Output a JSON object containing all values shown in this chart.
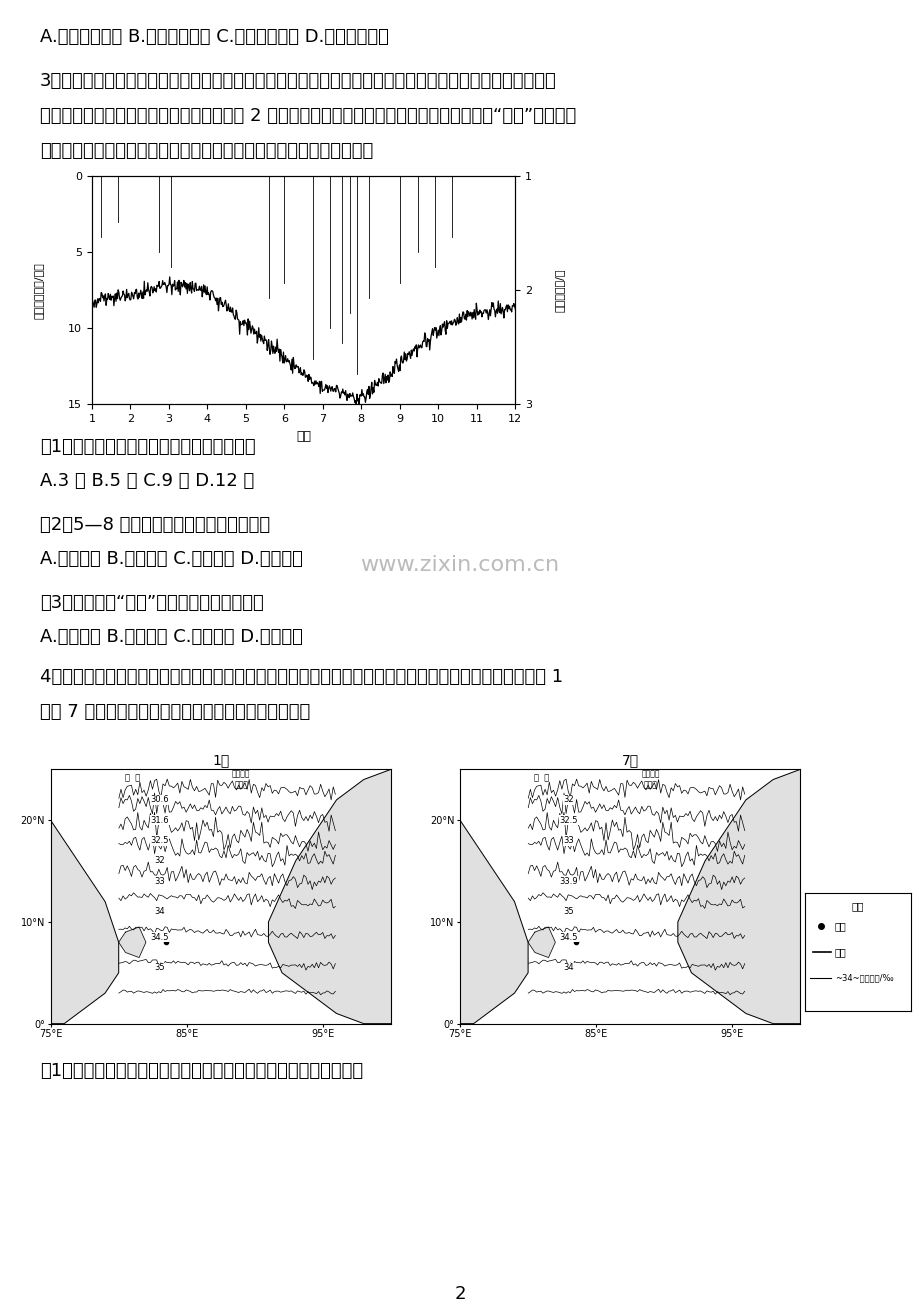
{
  "page_bg": "#ffffff",
  "text_color": "#000000",
  "line1": "A.减少城市污水 B.缓解城市内涝 C.造成地面沉降 D.影响交通出行",
  "para3_line1": "3、我国某地气候干旱，土壤质地粗，含盐量高，主要生长耐旱耐盐的柽柳。该地土壤水分的主要补给来源是",
  "para3_line2": "生态灌水。研究发现，秋季该地自地表向下 2 米深范围内，土壤含水量先增后减，出现明显的“湿层”。下图示",
  "para3_line3": "意该地地下水埋深曲线和每日降水总量的月变化。据此完成下列各题。",
  "q1": "（1）该地最大规模的一次生态灌水是在（）",
  "q1_opts": "A.3 月 B.5 月 C.9 月 D.12 月",
  "q2": "（2）5—8 月地下水位的变动主要由于（）",
  "q2_opts": "A.气温回升 B.植被蒸腾 C.空气干燥 D.渗漏损失",
  "q3": "（3）秋季土壤“湿层”的形成主要得益于（）",
  "q3_opts": "A.蒸发减弱 B.生态灌水 C.下渗积累 D.毛细上升",
  "para4_line1": "4、季风在海表盐度的季节变化中起重要作用，孟加拉湾是受南亚季风影响的典型海域。下图示意孟加拉湾 1",
  "para4_line2": "月和 7 月多年平均海表盐度分布。据此完成下列小题。",
  "q4_1": "（1）绘制孟加拉湾海表盐度变化图主要借助的地理信息技术是（）",
  "page_num": "2",
  "chart_ylabel_left": "每日降水总量/毫米",
  "chart_ylabel_right": "地下水埋深/米",
  "chart_xlabel": "月份",
  "watermark": "www.zixin.com.cn"
}
